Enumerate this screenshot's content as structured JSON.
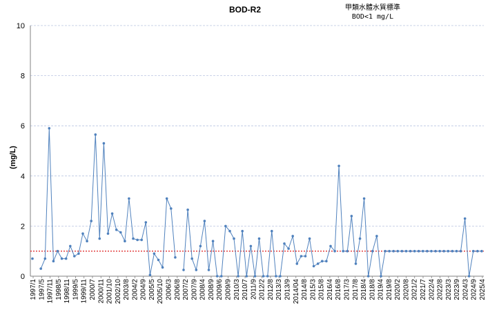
{
  "chart_data": {
    "type": "line",
    "title": "BOD-R2",
    "annotation": [
      "甲類水體水質標準",
      "BOD<1 mg/L"
    ],
    "xlabel": "",
    "ylabel": "(mg/L)",
    "ylim": [
      0,
      10
    ],
    "yticks": [
      "0",
      "2",
      "4",
      "6",
      "8",
      "10"
    ],
    "grid": true,
    "legend": "none",
    "x_tick_labels": [
      "1997/1",
      "1997/5",
      "1997/11",
      "1998/5",
      "1998/11",
      "1999/5",
      "1999/11",
      "2000/7",
      "2000/11",
      "2001/10",
      "2002/10",
      "2003/8",
      "2004/2",
      "2004/9",
      "2005/5",
      "2005/10",
      "2006/3",
      "2006/8",
      "2007/2",
      "2007/9",
      "2008/4",
      "2008/9",
      "2009/6",
      "2009/9",
      "2010/3",
      "2010/7",
      "2011/9",
      "2012/2",
      "2012/8",
      "2013/3",
      "2013/9",
      "2014/04",
      "2014/8",
      "2015/3",
      "2015/8",
      "2016/4",
      "2016/8",
      "2017/3",
      "2017/8",
      "2018/4",
      "2018/8",
      "2019/4",
      "2019/8",
      "2020/2",
      "2020/8",
      "2021/2",
      "2021/7",
      "2022/4",
      "2022/8",
      "2023/3",
      "2023/9",
      "2024/3",
      "2024/9",
      "2025/4"
    ],
    "series": [
      {
        "values": [
          0.7,
          null,
          0.3,
          0.7,
          5.9,
          0.6,
          1.0,
          0.7,
          0.7,
          1.2,
          0.8,
          0.9,
          1.7,
          1.4,
          2.2,
          5.65,
          1.5,
          5.3,
          1.7,
          2.5,
          1.85,
          1.75,
          1.4,
          3.1,
          1.5,
          1.45,
          1.45,
          2.15,
          0.05,
          0.9,
          0.65,
          0.35,
          3.1,
          2.7,
          0.75,
          null,
          0.25,
          2.65,
          0.7,
          0.25,
          1.2,
          2.2,
          0.25,
          1.4,
          0.0,
          0.0,
          2.0,
          1.8,
          1.5,
          0.0,
          1.8,
          0.0,
          1.2,
          0.0,
          1.5,
          0.0,
          0.0,
          1.8,
          0.0,
          0.0,
          1.3,
          1.1,
          1.6,
          0.5,
          0.8,
          0.8,
          1.5,
          0.4,
          0.5,
          0.6,
          0.6,
          1.2,
          1.0,
          4.4,
          1.0,
          1.0,
          2.4,
          0.5,
          1.5,
          3.1,
          0.0,
          1.0,
          1.6,
          0.0,
          1.0,
          1.0,
          1.0,
          1.0,
          1.0,
          1.0,
          1.0,
          1.0,
          1.0,
          1.0,
          1.0,
          1.0,
          1.0,
          1.0,
          1.0,
          1.0,
          1.0,
          1.0,
          1.0,
          2.3,
          0.0,
          1.0,
          1.0,
          1.0
        ]
      }
    ],
    "reference_line": {
      "value": 1
    },
    "colors": {
      "series": "#4f81bd",
      "reference": "#e03030",
      "grid": "#b8c4e0",
      "axis": "#808080"
    }
  }
}
